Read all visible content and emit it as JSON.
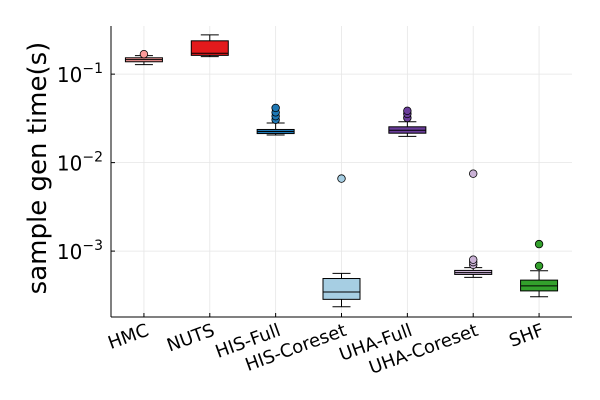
{
  "chart_data": {
    "type": "box",
    "title": "",
    "xlabel": "",
    "ylabel": "sample gen time(s)",
    "yscale": "log10",
    "ylim": [
      0.00018,
      0.35
    ],
    "yticks": [
      {
        "value": 0.001,
        "base": "10",
        "exp": "−3"
      },
      {
        "value": 0.01,
        "base": "10",
        "exp": "−2"
      },
      {
        "value": 0.1,
        "base": "10",
        "exp": "−1"
      }
    ],
    "grid": true,
    "legend": "none",
    "categories": [
      "HMC",
      "NUTS",
      "HIS-Full",
      "HIS-Coreset",
      "UHA-Full",
      "UHA-Coreset",
      "SHF"
    ],
    "boxes": [
      {
        "category": "HMC",
        "color": "#fb9a99",
        "whisker_low": 0.128,
        "q1": 0.138,
        "median": 0.146,
        "q3": 0.153,
        "whisker_high": 0.162,
        "outliers": [
          0.168
        ]
      },
      {
        "category": "NUTS",
        "color": "#e31a1c",
        "whisker_low": 0.158,
        "q1": 0.163,
        "median": 0.172,
        "q3": 0.238,
        "whisker_high": 0.278,
        "outliers": []
      },
      {
        "category": "HIS-Full",
        "color": "#1f78b4",
        "whisker_low": 0.0205,
        "q1": 0.0213,
        "median": 0.0225,
        "q3": 0.0237,
        "whisker_high": 0.028,
        "outliers": [
          0.0305,
          0.0335,
          0.037,
          0.0415
        ]
      },
      {
        "category": "HIS-Coreset",
        "color": "#a6cee3",
        "whisker_low": 0.000235,
        "q1": 0.000285,
        "median": 0.000345,
        "q3": 0.00049,
        "whisker_high": 0.00056,
        "outliers": [
          0.0066
        ]
      },
      {
        "category": "UHA-Full",
        "color": "#6a3d9a",
        "whisker_low": 0.0198,
        "q1": 0.0215,
        "median": 0.0232,
        "q3": 0.0254,
        "whisker_high": 0.029,
        "outliers": [
          0.032,
          0.0355,
          0.0385
        ]
      },
      {
        "category": "UHA-Coreset",
        "color": "#cab2d6",
        "whisker_low": 0.000505,
        "q1": 0.000545,
        "median": 0.000572,
        "q3": 0.000605,
        "whisker_high": 0.00065,
        "outliers": [
          0.0007,
          0.00075,
          0.0008,
          0.0075
        ]
      },
      {
        "category": "SHF",
        "color": "#33a02c",
        "whisker_low": 0.000305,
        "q1": 0.000355,
        "median": 0.000405,
        "q3": 0.00047,
        "whisker_high": 0.0006,
        "outliers": [
          0.00068,
          0.0012
        ]
      }
    ]
  }
}
